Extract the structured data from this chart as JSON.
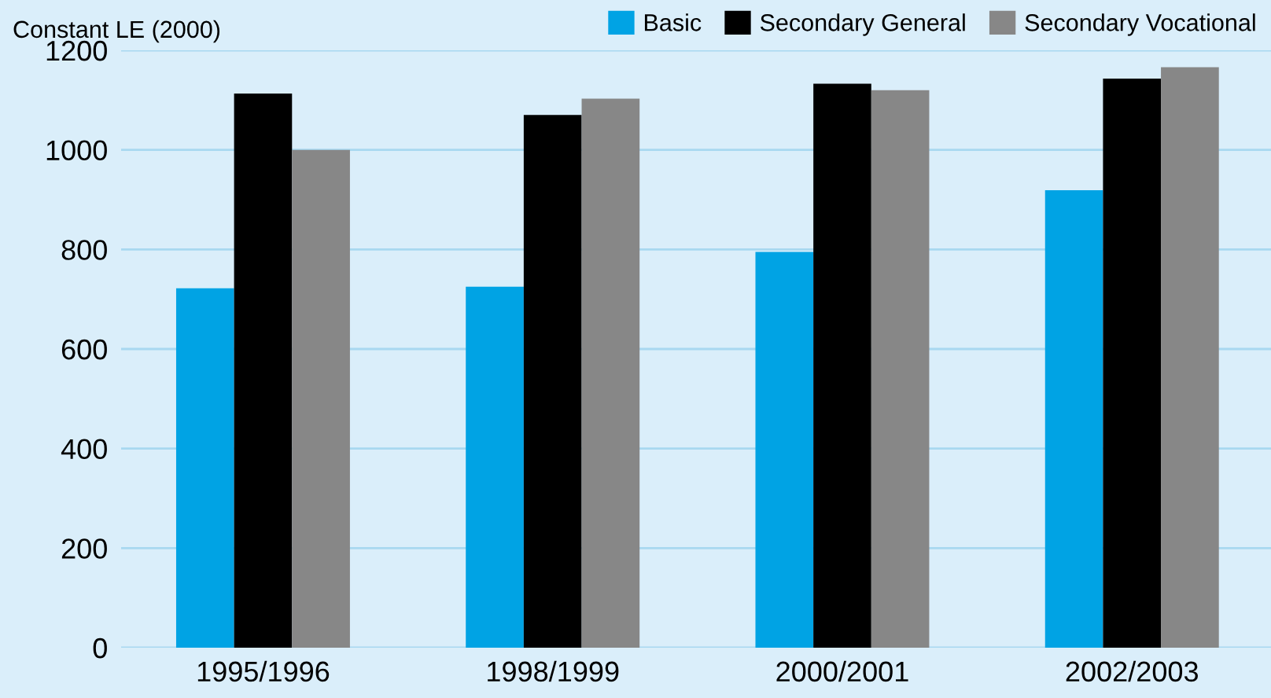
{
  "chart_data": {
    "type": "bar",
    "ylabel": "Constant LE (2000)",
    "categories": [
      "1995/1996",
      "1998/1999",
      "2000/2001",
      "2002/2003"
    ],
    "series": [
      {
        "name": "Basic",
        "color": "#00a3e4",
        "values": [
          722,
          725,
          795,
          919
        ]
      },
      {
        "name": "Secondary General",
        "color": "#000000",
        "values": [
          1113,
          1070,
          1133,
          1143
        ]
      },
      {
        "name": "Secondary Vocational",
        "color": "#878787",
        "values": [
          1000,
          1103,
          1120,
          1166
        ]
      }
    ],
    "ylim": [
      0,
      1200
    ],
    "yticks": [
      0,
      200,
      400,
      600,
      800,
      1000,
      1200
    ],
    "grid": "y",
    "legend": "top right"
  }
}
